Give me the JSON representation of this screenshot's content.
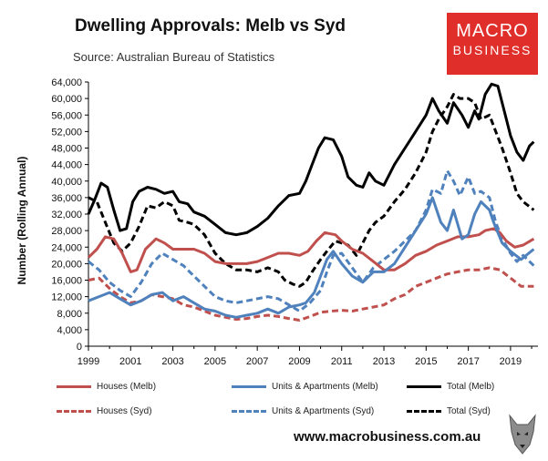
{
  "header": {
    "title": "Dwelling Approvals: Melb vs Syd",
    "source": "Source: Australian Bureau of Statistics"
  },
  "logo": {
    "line1": "MACRO",
    "line2": "BUSINESS",
    "color": "#e02f2a"
  },
  "footer": {
    "url": "www.macrobusiness.com.au"
  },
  "chart_data": {
    "type": "line",
    "title": "Dwelling Approvals: Melb vs Syd",
    "xlabel": "",
    "ylabel": "Number (Rolling Annual)",
    "xlim": [
      1999,
      2020.3
    ],
    "ylim": [
      0,
      64000
    ],
    "yticks": [
      0,
      4000,
      8000,
      12000,
      16000,
      20000,
      24000,
      28000,
      32000,
      36000,
      40000,
      44000,
      48000,
      52000,
      56000,
      60000,
      64000
    ],
    "ytick_labels": [
      "0",
      "4,000",
      "8,000",
      "12,000",
      "16,000",
      "20,000",
      "24,000",
      "28,000",
      "32,000",
      "36,000",
      "40,000",
      "44,000",
      "48,000",
      "52,000",
      "56,000",
      "60,000",
      "64,000"
    ],
    "xticks": [
      1999,
      2001,
      2003,
      2005,
      2007,
      2009,
      2011,
      2013,
      2015,
      2017,
      2019
    ],
    "xtick_labels": [
      "1999",
      "2001",
      "2003",
      "2005",
      "2007",
      "2009",
      "2011",
      "2013",
      "2015",
      "2017",
      "2019"
    ],
    "grid": false,
    "legend_position": "bottom",
    "series": [
      {
        "name": "Houses (Melb)",
        "color": "#c0504d",
        "dash": "solid",
        "x": [
          1999,
          1999.4,
          1999.8,
          2000.2,
          2000.6,
          2001,
          2001.3,
          2001.7,
          2002.2,
          2002.6,
          2003,
          2003.5,
          2004,
          2004.5,
          2005,
          2005.5,
          2006,
          2006.5,
          2007,
          2007.5,
          2008,
          2008.5,
          2009,
          2009.4,
          2009.8,
          2010.2,
          2010.7,
          2011,
          2011.5,
          2012,
          2012.5,
          2013,
          2013.5,
          2014,
          2014.5,
          2015,
          2015.5,
          2016,
          2016.5,
          2017,
          2017.5,
          2017.8,
          2018.2,
          2018.5,
          2018.8,
          2019.2,
          2019.6,
          2020.1
        ],
        "values": [
          21500,
          23500,
          26500,
          26000,
          22500,
          18000,
          18500,
          23500,
          26000,
          25000,
          23500,
          23500,
          23500,
          22500,
          20500,
          20000,
          20000,
          20000,
          20500,
          21500,
          22500,
          22500,
          22000,
          23000,
          25500,
          27500,
          27000,
          25500,
          23500,
          22500,
          20500,
          18500,
          18500,
          20000,
          22000,
          23000,
          24500,
          25500,
          26500,
          26500,
          27000,
          28000,
          28500,
          27500,
          25500,
          24000,
          24500,
          26000
        ]
      },
      {
        "name": "Houses (Syd)",
        "color": "#c0504d",
        "dash": "dashed",
        "x": [
          1999,
          1999.5,
          2000,
          2000.5,
          2001,
          2001.5,
          2002,
          2002.5,
          2003,
          2003.5,
          2004,
          2004.5,
          2005,
          2005.5,
          2006,
          2006.5,
          2007,
          2007.5,
          2008,
          2008.5,
          2009,
          2009.5,
          2010,
          2010.5,
          2011,
          2011.5,
          2012,
          2012.5,
          2013,
          2013.5,
          2014,
          2014.5,
          2015,
          2015.5,
          2016,
          2016.5,
          2017,
          2017.5,
          2018,
          2018.5,
          2019,
          2019.5,
          2020.1
        ],
        "values": [
          16000,
          16500,
          14000,
          12000,
          10500,
          11000,
          12500,
          12000,
          11500,
          10000,
          9500,
          8500,
          7500,
          7000,
          6500,
          6700,
          7200,
          7500,
          7200,
          6700,
          6300,
          7200,
          8200,
          8500,
          8700,
          8500,
          9000,
          9500,
          10000,
          11500,
          12500,
          14500,
          15500,
          16500,
          17500,
          18000,
          18500,
          18500,
          19000,
          18500,
          16500,
          14500,
          14500
        ]
      },
      {
        "name": "Units & Apartments (Melb)",
        "color": "#4f81bd",
        "dash": "solid",
        "x": [
          1999,
          1999.5,
          2000,
          2000.5,
          2001,
          2001.5,
          2002,
          2002.5,
          2003,
          2003.5,
          2004,
          2004.5,
          2005,
          2005.5,
          2006,
          2006.5,
          2007,
          2007.5,
          2008,
          2008.5,
          2009,
          2009.3,
          2009.7,
          2010,
          2010.3,
          2010.6,
          2011,
          2011.5,
          2012,
          2012.5,
          2013,
          2013.5,
          2014,
          2014.5,
          2015,
          2015.3,
          2015.7,
          2016,
          2016.3,
          2016.7,
          2017,
          2017.3,
          2017.6,
          2018,
          2018.2,
          2018.6,
          2019,
          2019.5,
          2020.1
        ],
        "values": [
          11000,
          12000,
          13000,
          11500,
          10000,
          11000,
          12500,
          13000,
          11000,
          12000,
          10500,
          9000,
          8500,
          7500,
          7000,
          7500,
          8000,
          9000,
          8000,
          9500,
          10000,
          10500,
          13000,
          17000,
          21000,
          23000,
          20000,
          17000,
          15500,
          18000,
          18000,
          20000,
          24000,
          28000,
          32000,
          36000,
          30000,
          28000,
          33000,
          26000,
          27000,
          32000,
          35000,
          33000,
          30000,
          25000,
          23000,
          21000,
          23500
        ]
      },
      {
        "name": "Units & Apartments (Syd)",
        "color": "#4f81bd",
        "dash": "dashed",
        "x": [
          1999,
          1999.5,
          2000,
          2000.5,
          2001,
          2001.5,
          2002,
          2002.5,
          2003,
          2003.5,
          2004,
          2004.5,
          2005,
          2005.5,
          2006,
          2006.5,
          2007,
          2007.5,
          2008,
          2008.5,
          2009,
          2009.5,
          2010,
          2010.3,
          2010.6,
          2011,
          2011.5,
          2012,
          2012.5,
          2013,
          2013.5,
          2014,
          2014.5,
          2015,
          2015.3,
          2015.7,
          2016,
          2016.3,
          2016.6,
          2017,
          2017.3,
          2017.6,
          2018,
          2018.3,
          2018.6,
          2019,
          2019.3,
          2019.6,
          2020.1
        ],
        "values": [
          20500,
          18500,
          15500,
          13500,
          12000,
          15500,
          20000,
          22500,
          21000,
          19500,
          17000,
          14500,
          12000,
          11000,
          10500,
          11000,
          11500,
          12000,
          11500,
          10000,
          8500,
          10500,
          13500,
          18000,
          22000,
          22500,
          19000,
          15500,
          19000,
          21000,
          23000,
          25500,
          28000,
          33000,
          38000,
          37000,
          42500,
          40000,
          36500,
          41000,
          37000,
          37500,
          36000,
          30000,
          26000,
          22500,
          20500,
          22000,
          19500
        ]
      },
      {
        "name": "Total (Melb)",
        "color": "#000000",
        "dash": "solid",
        "x": [
          1999,
          1999.3,
          1999.6,
          1999.9,
          2000.2,
          2000.5,
          2000.8,
          2001.1,
          2001.4,
          2001.8,
          2002.2,
          2002.6,
          2003,
          2003.3,
          2003.7,
          2004,
          2004.5,
          2005,
          2005.5,
          2006,
          2006.5,
          2007,
          2007.5,
          2008,
          2008.5,
          2009,
          2009.3,
          2009.6,
          2009.9,
          2010.2,
          2010.6,
          2011,
          2011.3,
          2011.7,
          2012,
          2012.3,
          2012.6,
          2013,
          2013.5,
          2014,
          2014.5,
          2015,
          2015.3,
          2015.6,
          2016,
          2016.3,
          2016.7,
          2017,
          2017.3,
          2017.5,
          2017.8,
          2018.1,
          2018.4,
          2018.7,
          2019,
          2019.3,
          2019.6,
          2019.9,
          2020.1
        ],
        "values": [
          32000,
          35500,
          39500,
          38500,
          33000,
          28000,
          28500,
          35000,
          37500,
          38500,
          38000,
          37000,
          37500,
          35000,
          34500,
          32500,
          31500,
          29500,
          27500,
          27000,
          27500,
          29000,
          31000,
          34000,
          36500,
          37000,
          40000,
          44000,
          48000,
          50500,
          50000,
          46000,
          41000,
          39000,
          38500,
          42000,
          40000,
          39000,
          44000,
          48000,
          52000,
          56000,
          60000,
          57000,
          54000,
          59000,
          56000,
          53000,
          57000,
          55000,
          61000,
          63500,
          63000,
          57000,
          51000,
          47000,
          45000,
          48500,
          49500
        ]
      },
      {
        "name": "Total (Syd)",
        "color": "#000000",
        "dash": "dashed",
        "x": [
          1999,
          1999.4,
          1999.8,
          2000.2,
          2000.6,
          2001,
          2001.4,
          2001.8,
          2002.2,
          2002.6,
          2003,
          2003.3,
          2003.7,
          2004,
          2004.5,
          2005,
          2005.5,
          2006,
          2006.5,
          2007,
          2007.5,
          2008,
          2008.3,
          2008.7,
          2009,
          2009.3,
          2009.6,
          2010,
          2010.3,
          2010.7,
          2011,
          2011.3,
          2011.7,
          2012,
          2012.3,
          2012.6,
          2013,
          2013.5,
          2014,
          2014.5,
          2015,
          2015.3,
          2015.6,
          2016,
          2016.3,
          2016.6,
          2017,
          2017.3,
          2017.6,
          2018,
          2018.3,
          2018.6,
          2019,
          2019.3,
          2019.6,
          2020.1
        ],
        "values": [
          36000,
          35000,
          30000,
          25000,
          23000,
          25000,
          29000,
          34000,
          33500,
          35000,
          34000,
          30500,
          30000,
          29500,
          27000,
          22500,
          20000,
          18500,
          18500,
          18000,
          19000,
          18000,
          16000,
          15000,
          14500,
          15500,
          18000,
          21000,
          23000,
          25500,
          25000,
          24500,
          22000,
          25000,
          28000,
          30000,
          31500,
          35000,
          38000,
          42000,
          47000,
          52000,
          55000,
          58000,
          61000,
          60000,
          60000,
          59000,
          55000,
          56000,
          52000,
          48000,
          42000,
          37000,
          35000,
          33000
        ]
      }
    ]
  }
}
